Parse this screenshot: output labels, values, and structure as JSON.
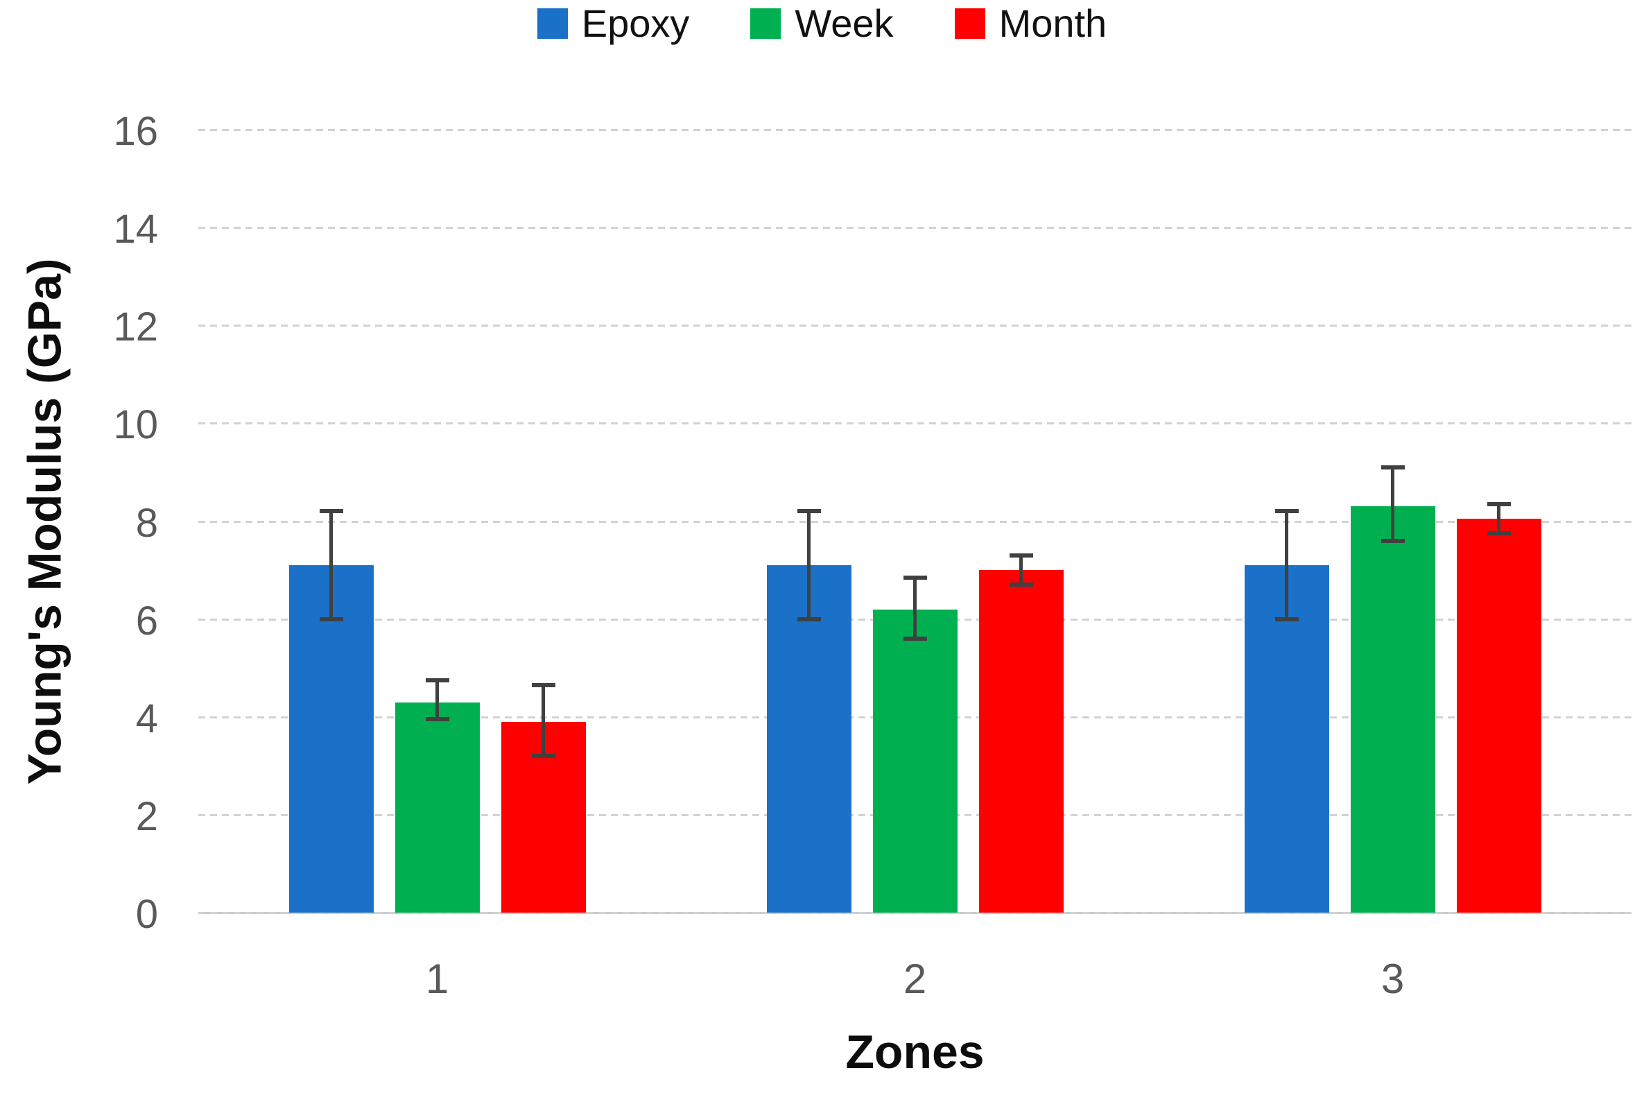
{
  "chart_data": {
    "type": "bar",
    "title": "",
    "categories": [
      "1",
      "2",
      "3"
    ],
    "series": [
      {
        "name": "Epoxy",
        "color": "#1B70C8",
        "values": [
          7.1,
          7.1,
          7.1
        ],
        "err_lo": [
          6.0,
          6.0,
          6.0
        ],
        "err_hi": [
          8.2,
          8.2,
          8.2
        ]
      },
      {
        "name": "Week",
        "color": "#00B050",
        "values": [
          4.3,
          6.2,
          8.3
        ],
        "err_lo": [
          3.95,
          5.6,
          7.6
        ],
        "err_hi": [
          4.75,
          6.85,
          9.1
        ]
      },
      {
        "name": "Month",
        "color": "#FF0000",
        "values": [
          3.9,
          7.0,
          8.05
        ],
        "err_lo": [
          3.2,
          6.7,
          7.75
        ],
        "err_hi": [
          4.65,
          7.3,
          8.35
        ]
      }
    ],
    "xlabel": "Zones",
    "ylabel": "Young's Modulus (GPa)",
    "ylim": [
      0,
      16
    ],
    "ytick_step": 2,
    "ytick_labels": [
      "0",
      "2",
      "4",
      "6",
      "8",
      "10",
      "12",
      "14",
      "16"
    ],
    "grid": true,
    "legend_position": "top",
    "error_bar_color": "#404040",
    "gridline_color": "#d2d2d2",
    "tick_label_color": "#595959"
  }
}
